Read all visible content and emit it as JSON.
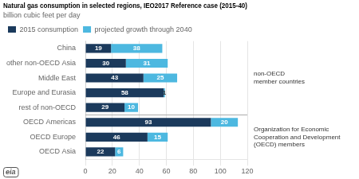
{
  "chart_data": {
    "type": "bar",
    "orientation": "horizontal",
    "stacked": true,
    "title": "Natural gas consumption in selected regions, IEO2017 Reference case (2015-40)",
    "subtitle": "billion cubic feet per day",
    "categories": [
      "China",
      "other non-OECD Asia",
      "Middle East",
      "Europe and Eurasia",
      "rest of non-OECD",
      "OECD Americas",
      "OECD Europe",
      "OECD Asia"
    ],
    "series": [
      {
        "name": "2015 consumption",
        "color": "#1b3a5c",
        "values": [
          19,
          30,
          43,
          58,
          29,
          93,
          46,
          22
        ]
      },
      {
        "name": "projected growth through 2040",
        "color": "#4db8e0",
        "values": [
          38,
          31,
          25,
          1,
          10,
          20,
          15,
          6
        ]
      }
    ],
    "xlim": [
      0,
      120
    ],
    "xticks": [
      0,
      20,
      40,
      60,
      80,
      100,
      120
    ],
    "grid": true,
    "legend": "top",
    "data_labels": true,
    "annotations": [
      "non-OECD\nmember countries",
      "Organization for Economic\nCooperation and Development\n(OECD) members",
      "eia"
    ]
  }
}
